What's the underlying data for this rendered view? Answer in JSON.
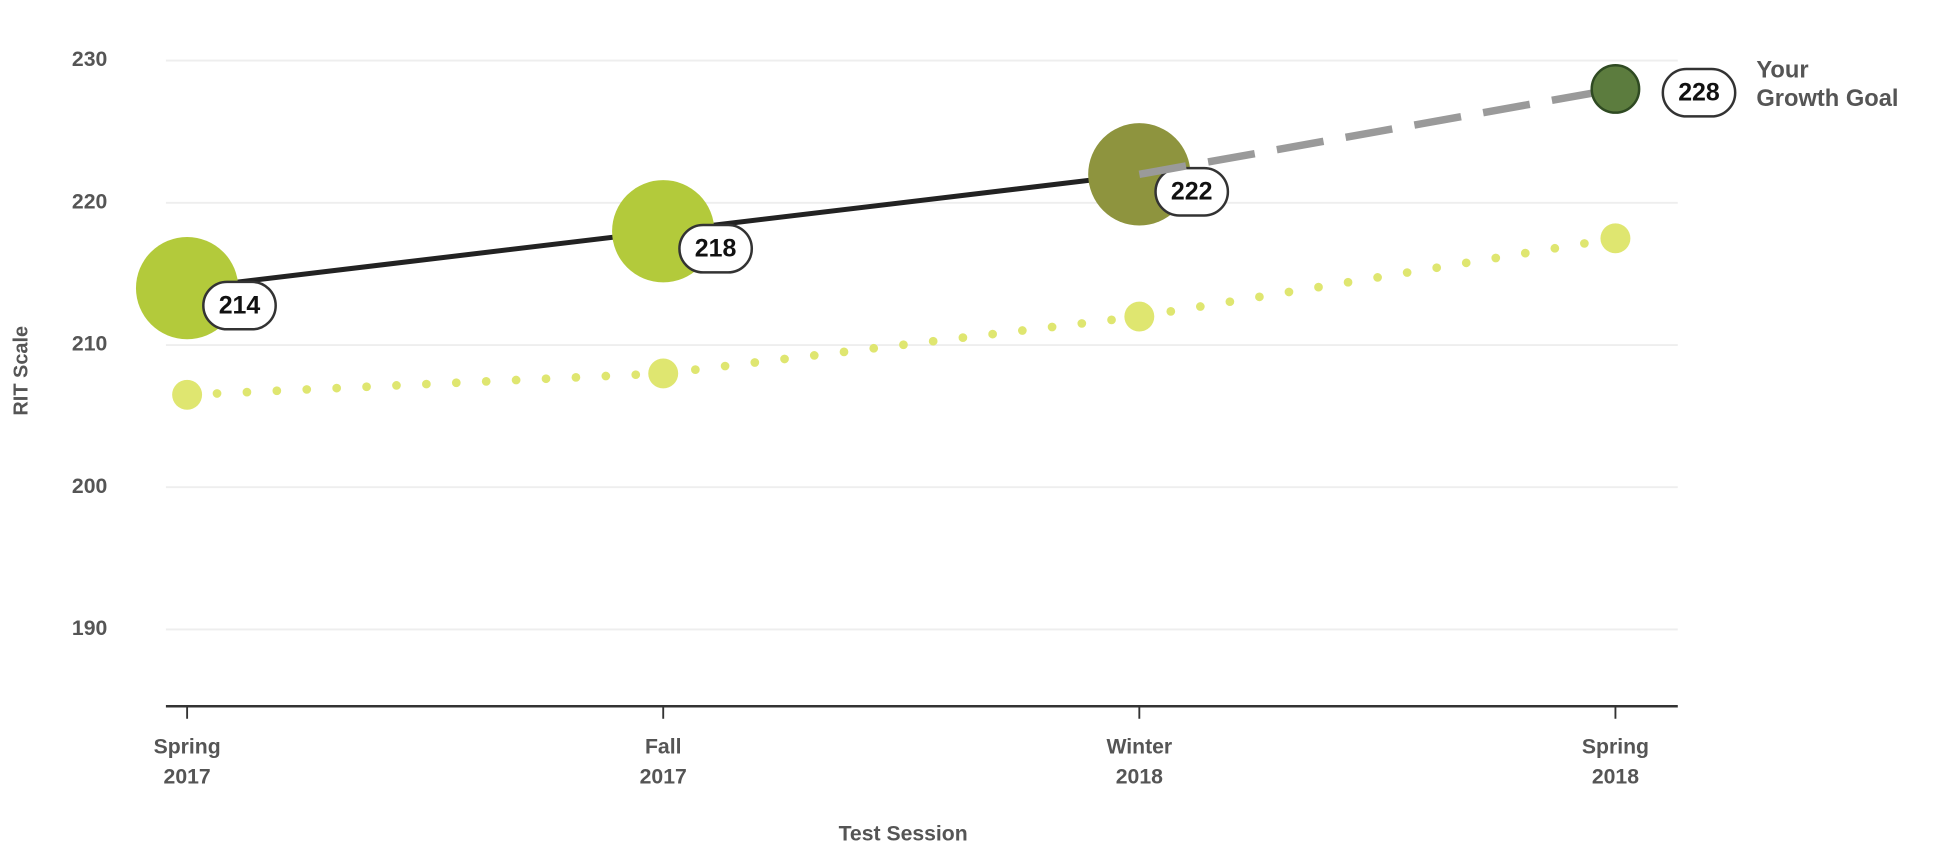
{
  "chart_data": {
    "type": "line",
    "x_label": "Test Session",
    "y_label": "RIT Scale",
    "categories": [
      "Spring 2017",
      "Fall 2017",
      "Winter 2018",
      "Spring 2018"
    ],
    "ylim": [
      184.6,
      233.8
    ],
    "yticks": [
      190,
      200,
      210,
      220,
      230
    ],
    "grid": true,
    "series": [
      {
        "values": [
          214,
          218,
          222,
          null
        ],
        "color": "#222222",
        "point_colors": [
          "#b3ca3b",
          "#b3ca3b",
          "#8e943e",
          null
        ],
        "show_labels": true
      },
      {
        "name": "Your Growth Goal",
        "values": [
          null,
          null,
          null,
          228
        ],
        "color": "#9a9a9a",
        "point_colors": [
          null,
          null,
          null,
          "#5c7c3e"
        ],
        "dashed": true,
        "show_labels": true
      },
      {
        "values": [
          206.5,
          208,
          212,
          217.5
        ],
        "color": "#dfe670",
        "dotted": true
      }
    ]
  }
}
